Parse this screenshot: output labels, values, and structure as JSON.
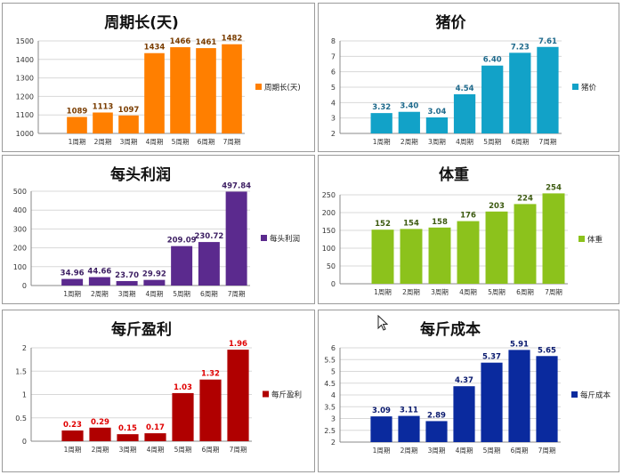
{
  "chart_data": [
    {
      "type": "bar",
      "title": "周期长(天)",
      "categories": [
        "1周期",
        "2周期",
        "3周期",
        "4周期",
        "5周期",
        "6周期",
        "7周期"
      ],
      "series": [
        {
          "name": "周期长(天)",
          "values": [
            1089,
            1113,
            1097,
            1434,
            1466,
            1461,
            1482
          ]
        }
      ],
      "labels": [
        "1089",
        "1113",
        "1097",
        "1434",
        "1466",
        "1461",
        "1482"
      ],
      "ylim": [
        1000,
        1500
      ],
      "yticks": [
        "1000",
        "1100",
        "1200",
        "1300",
        "1400",
        "1500"
      ],
      "color": "#ff7f00",
      "label_color": "#7a3d00",
      "legend_position": "right"
    },
    {
      "type": "bar",
      "title": "猪价",
      "categories": [
        "1周期",
        "2周期",
        "3周期",
        "4周期",
        "5周期",
        "6周期",
        "7周期"
      ],
      "series": [
        {
          "name": "猪价",
          "values": [
            3.32,
            3.4,
            3.04,
            4.54,
            6.4,
            7.23,
            7.61
          ]
        }
      ],
      "labels": [
        "3.32",
        "3.40",
        "3.04",
        "4.54",
        "6.40",
        "7.23",
        "7.61"
      ],
      "ylim": [
        2,
        8
      ],
      "yticks": [
        "2",
        "3",
        "4",
        "5",
        "6",
        "7",
        "8"
      ],
      "color": "#12a2c8",
      "label_color": "#1f6a8c",
      "legend_position": "right"
    },
    {
      "type": "bar",
      "title": "每头利润",
      "categories": [
        "1周期",
        "2周期",
        "3周期",
        "4周期",
        "5周期",
        "6周期",
        "7周期"
      ],
      "series": [
        {
          "name": "每头利润",
          "values": [
            34.96,
            44.66,
            23.7,
            29.92,
            209.09,
            230.72,
            497.84
          ]
        }
      ],
      "labels": [
        "34.96",
        "44.66",
        "23.70",
        "29.92",
        "209.09",
        "230.72",
        "497.84"
      ],
      "ylim": [
        0,
        500
      ],
      "yticks": [
        "0",
        "100",
        "200",
        "300",
        "400",
        "500"
      ],
      "color": "#5b2a8e",
      "label_color": "#3d1f63",
      "legend_position": "right"
    },
    {
      "type": "bar",
      "title": "体重",
      "categories": [
        "1周期",
        "2周期",
        "3周期",
        "4周期",
        "5周期",
        "6周期",
        "7周期"
      ],
      "series": [
        {
          "name": "体重",
          "values": [
            152,
            154,
            158,
            176,
            203,
            224,
            254
          ]
        }
      ],
      "labels": [
        "152",
        "154",
        "158",
        "176",
        "203",
        "224",
        "254"
      ],
      "ylim": [
        0,
        250
      ],
      "yticks": [
        "0",
        "50",
        "100",
        "150",
        "200",
        "250"
      ],
      "color": "#8cc21c",
      "label_color": "#3c5a10",
      "legend_position": "right"
    },
    {
      "type": "bar",
      "title": "每斤盈利",
      "categories": [
        "1周期",
        "2周期",
        "3周期",
        "4周期",
        "5周期",
        "6周期",
        "7周期"
      ],
      "series": [
        {
          "name": "每斤盈利",
          "values": [
            0.23,
            0.29,
            0.15,
            0.17,
            1.03,
            1.32,
            1.96
          ]
        }
      ],
      "labels": [
        "0.23",
        "0.29",
        "0.15",
        "0.17",
        "1.03",
        "1.32",
        "1.96"
      ],
      "ylim": [
        0,
        2
      ],
      "yticks": [
        "0",
        "0.5",
        "1",
        "1.5",
        "2"
      ],
      "color": "#b00000",
      "label_color": "#e00000",
      "legend_position": "right"
    },
    {
      "type": "bar",
      "title": "每斤成本",
      "categories": [
        "1周期",
        "2周期",
        "3周期",
        "4周期",
        "5周期",
        "6周期",
        "7周期"
      ],
      "series": [
        {
          "name": "每斤成本",
          "values": [
            3.09,
            3.11,
            2.89,
            4.37,
            5.37,
            5.91,
            5.65
          ]
        }
      ],
      "labels": [
        "3.09",
        "3.11",
        "2.89",
        "4.37",
        "5.37",
        "5.91",
        "5.65"
      ],
      "ylim": [
        2,
        6
      ],
      "yticks": [
        "2",
        "2.5",
        "3",
        "3.5",
        "4",
        "4.5",
        "5",
        "5.5",
        "6"
      ],
      "color": "#0a2a9e",
      "label_color": "#0a1a6e",
      "legend_position": "right"
    }
  ]
}
